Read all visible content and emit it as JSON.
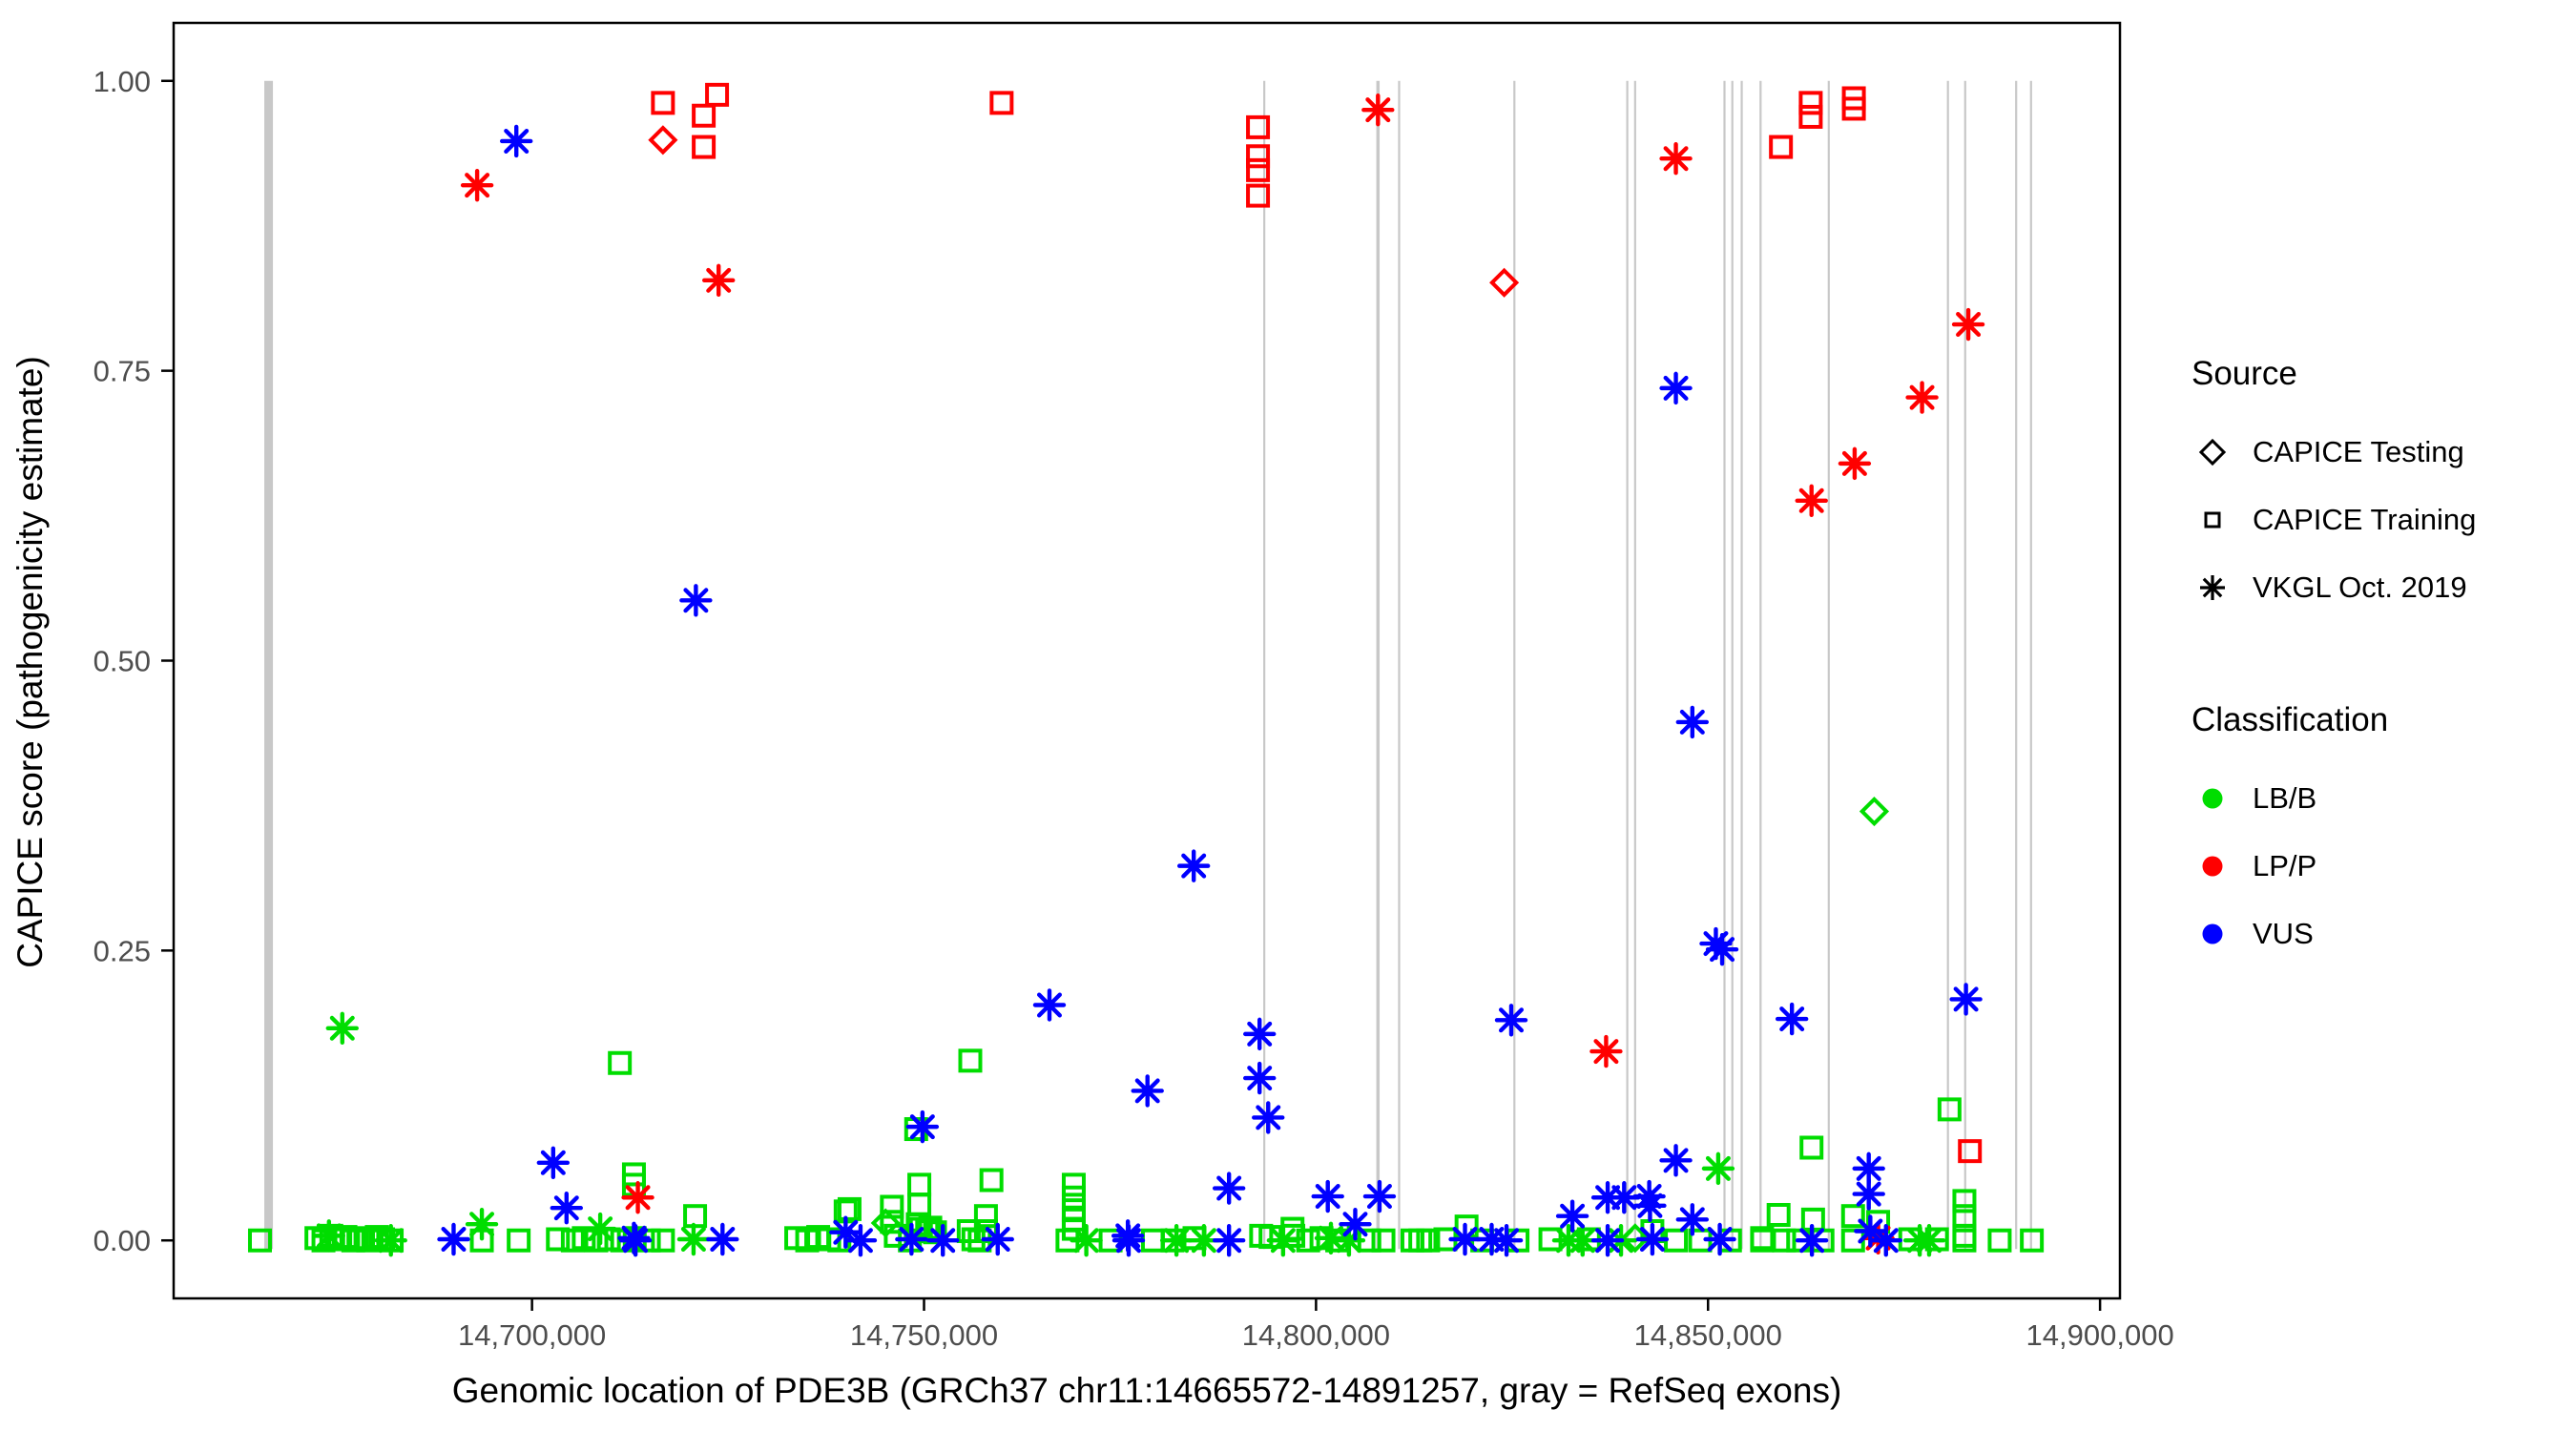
{
  "colors": {
    "lbb": "#00DD00",
    "lpp": "#FF0000",
    "vus": "#0000FF",
    "exon": "#C8C8C8",
    "tick_label": "#4D4D4D",
    "panel_border": "#000000"
  },
  "legend": {
    "source": {
      "title": "Source",
      "items": [
        {
          "label": "CAPICE Testing",
          "shape": "diamond"
        },
        {
          "label": "CAPICE Training",
          "shape": "square"
        },
        {
          "label": "VKGL Oct. 2019",
          "shape": "asterisk"
        }
      ]
    },
    "classification": {
      "title": "Classification",
      "items": [
        {
          "label": "LB/B",
          "color_key": "lbb"
        },
        {
          "label": "LP/P",
          "color_key": "lpp"
        },
        {
          "label": "VUS",
          "color_key": "vus"
        }
      ]
    }
  },
  "chart_data": {
    "type": "scatter",
    "xlabel": "Genomic location of PDE3B (GRCh37 chr11:14665572-14891257, gray = RefSeq exons)",
    "ylabel": "CAPICE score (pathogenicity estimate)",
    "x_domain": [
      14654288,
      14902541
    ],
    "y_domain": [
      -0.05,
      1.05
    ],
    "x_ticks": [
      {
        "v": 14700000,
        "label": "14,700,000"
      },
      {
        "v": 14750000,
        "label": "14,750,000"
      },
      {
        "v": 14800000,
        "label": "14,800,000"
      },
      {
        "v": 14850000,
        "label": "14,850,000"
      },
      {
        "v": 14900000,
        "label": "14,900,000"
      }
    ],
    "y_ticks": [
      {
        "v": 0,
        "label": "0.00"
      },
      {
        "v": 0.25,
        "label": "0.25"
      },
      {
        "v": 0.5,
        "label": "0.50"
      },
      {
        "v": 0.75,
        "label": "0.75"
      },
      {
        "v": 1,
        "label": "1.00"
      }
    ],
    "grid": "off",
    "legend_position": "right",
    "exons_note": "gray vertical bands = RefSeq exons, drawn from score 0 to 1; [center_bp, width_bp]",
    "exons": [
      [
        14666400,
        1100
      ],
      [
        14793400,
        250
      ],
      [
        14807900,
        420
      ],
      [
        14810600,
        250
      ],
      [
        14825300,
        250
      ],
      [
        14839700,
        250
      ],
      [
        14840700,
        250
      ],
      [
        14852100,
        250
      ],
      [
        14853100,
        250
      ],
      [
        14854300,
        250
      ],
      [
        14856700,
        250
      ],
      [
        14865400,
        250
      ],
      [
        14880600,
        250
      ],
      [
        14882800,
        250
      ],
      [
        14889300,
        250
      ],
      [
        14891200,
        250
      ]
    ],
    "series": [
      {
        "classification": "LB/B",
        "source": "CAPICE Training",
        "shape": "square",
        "color_key": "lbb",
        "points": [
          [
            14711200,
            0.153
          ],
          [
            14755900,
            0.155
          ],
          [
            14880800,
            0.113
          ],
          [
            14749000,
            0.096
          ],
          [
            14863200,
            0.08
          ],
          [
            14713000,
            0.057
          ],
          [
            14758600,
            0.052
          ],
          [
            14713000,
            0.048
          ],
          [
            14749400,
            0.048
          ],
          [
            14769100,
            0.048
          ],
          [
            14769100,
            0.037
          ],
          [
            14882700,
            0.034
          ],
          [
            14749400,
            0.031
          ],
          [
            14745900,
            0.029
          ],
          [
            14740500,
            0.027
          ],
          [
            14769100,
            0.026
          ],
          [
            14740000,
            0.025
          ],
          [
            14859000,
            0.022
          ],
          [
            14720800,
            0.021
          ],
          [
            14757900,
            0.021
          ],
          [
            14868500,
            0.021
          ],
          [
            14882700,
            0.021
          ],
          [
            14769100,
            0.018
          ],
          [
            14863400,
            0.018
          ],
          [
            14745900,
            0.016
          ],
          [
            14871700,
            0.016
          ],
          [
            14749200,
            0.014
          ],
          [
            14819200,
            0.012
          ],
          [
            14750800,
            0.011
          ],
          [
            14769100,
            0.01
          ],
          [
            14797000,
            0.01
          ],
          [
            14749600,
            0.01
          ],
          [
            14750400,
            0.008
          ],
          [
            14755700,
            0.008
          ],
          [
            14757900,
            0.008
          ],
          [
            14842900,
            0.008
          ],
          [
            14751400,
            0.007
          ],
          [
            14665300,
            0.0
          ],
          [
            14672500,
            0.002
          ],
          [
            14673400,
            0.0
          ],
          [
            14674400,
            0.004
          ],
          [
            14675300,
            0.001
          ],
          [
            14676200,
            0.003
          ],
          [
            14677200,
            0.0
          ],
          [
            14678100,
            0.002
          ],
          [
            14679100,
            0.0
          ],
          [
            14680200,
            0.003
          ],
          [
            14681000,
            0.001
          ],
          [
            14682100,
            0.0
          ],
          [
            14693600,
            0.0
          ],
          [
            14698300,
            0.0
          ],
          [
            14703300,
            0.001
          ],
          [
            14705200,
            0.0
          ],
          [
            14706600,
            0.002
          ],
          [
            14708200,
            0.0
          ],
          [
            14709800,
            0.001
          ],
          [
            14711500,
            0.0
          ],
          [
            14713100,
            0.002
          ],
          [
            14714900,
            0.0
          ],
          [
            14716700,
            0.0
          ],
          [
            14733700,
            0.002
          ],
          [
            14735100,
            0.0
          ],
          [
            14736500,
            0.003
          ],
          [
            14737900,
            0.001
          ],
          [
            14739200,
            0.0
          ],
          [
            14746400,
            0.004
          ],
          [
            14748200,
            0.0
          ],
          [
            14756300,
            0.001
          ],
          [
            14757100,
            0.0
          ],
          [
            14768300,
            0.0
          ],
          [
            14773800,
            0.0
          ],
          [
            14779200,
            0.0
          ],
          [
            14781700,
            0.0
          ],
          [
            14784500,
            0.002
          ],
          [
            14793000,
            0.004
          ],
          [
            14794200,
            0.003
          ],
          [
            14797100,
            0.004
          ],
          [
            14799000,
            0.0
          ],
          [
            14800700,
            0.002
          ],
          [
            14802700,
            0.0
          ],
          [
            14806800,
            0.0
          ],
          [
            14808600,
            0.0
          ],
          [
            14812300,
            0.0
          ],
          [
            14813300,
            0.0
          ],
          [
            14814300,
            0.0
          ],
          [
            14816500,
            0.001
          ],
          [
            14821200,
            0.0
          ],
          [
            14825700,
            0.0
          ],
          [
            14829900,
            0.001
          ],
          [
            14834800,
            0.001
          ],
          [
            14845900,
            0.0
          ],
          [
            14849000,
            0.0
          ],
          [
            14852800,
            0.0
          ],
          [
            14856900,
            0.002
          ],
          [
            14856900,
            0.0
          ],
          [
            14859700,
            0.0
          ],
          [
            14861500,
            0.0
          ],
          [
            14864600,
            0.0
          ],
          [
            14868500,
            0.0
          ],
          [
            14875800,
            0.001
          ],
          [
            14879200,
            0.001
          ],
          [
            14882700,
            0.004
          ],
          [
            14882700,
            0.0
          ],
          [
            14887200,
            0.0
          ],
          [
            14891300,
            0.0
          ]
        ]
      },
      {
        "classification": "LB/B",
        "source": "CAPICE Testing",
        "shape": "diamond",
        "color_key": "lbb",
        "points": [
          [
            14871200,
            0.37
          ],
          [
            14745100,
            0.015
          ],
          [
            14840700,
            0.002
          ]
        ]
      },
      {
        "classification": "LB/B",
        "source": "VKGL Oct. 2019",
        "shape": "asterisk",
        "color_key": "lbb",
        "points": [
          [
            14675800,
            0.183
          ],
          [
            14851300,
            0.062
          ],
          [
            14693600,
            0.014
          ],
          [
            14708700,
            0.01
          ],
          [
            14674100,
            0.004
          ],
          [
            14682000,
            0.0
          ],
          [
            14720600,
            0.001
          ],
          [
            14770700,
            0.0
          ],
          [
            14782200,
            0.0
          ],
          [
            14785700,
            0.0
          ],
          [
            14795800,
            0.0
          ],
          [
            14801900,
            0.002
          ],
          [
            14804200,
            0.0
          ],
          [
            14832200,
            0.0
          ],
          [
            14834000,
            0.0
          ],
          [
            14838900,
            0.0
          ],
          [
            14877000,
            0.0
          ],
          [
            14878200,
            0.0
          ]
        ]
      },
      {
        "classification": "LP/P",
        "source": "CAPICE Training",
        "shape": "square",
        "color_key": "lpp",
        "points": [
          [
            14716700,
            0.981
          ],
          [
            14721900,
            0.97
          ],
          [
            14721900,
            0.943
          ],
          [
            14723600,
            0.988
          ],
          [
            14759900,
            0.981
          ],
          [
            14792600,
            0.96
          ],
          [
            14792600,
            0.935
          ],
          [
            14792600,
            0.923
          ],
          [
            14792600,
            0.901
          ],
          [
            14859300,
            0.943
          ],
          [
            14863100,
            0.981
          ],
          [
            14863100,
            0.969
          ],
          [
            14868600,
            0.985
          ],
          [
            14868600,
            0.976
          ],
          [
            14883400,
            0.077
          ]
        ]
      },
      {
        "classification": "LP/P",
        "source": "CAPICE Testing",
        "shape": "diamond",
        "color_key": "lpp",
        "points": [
          [
            14716700,
            0.949
          ],
          [
            14824000,
            0.826
          ]
        ]
      },
      {
        "classification": "LP/P",
        "source": "VKGL Oct. 2019",
        "shape": "asterisk",
        "color_key": "lpp",
        "points": [
          [
            14693000,
            0.91
          ],
          [
            14723800,
            0.828
          ],
          [
            14807900,
            0.975
          ],
          [
            14845900,
            0.933
          ],
          [
            14883200,
            0.79
          ],
          [
            14877300,
            0.727
          ],
          [
            14868700,
            0.67
          ],
          [
            14863200,
            0.638
          ],
          [
            14837000,
            0.163
          ],
          [
            14713500,
            0.037
          ],
          [
            14871700,
            0.002
          ]
        ]
      },
      {
        "classification": "VUS",
        "source": "VKGL Oct. 2019",
        "shape": "asterisk",
        "color_key": "vus",
        "points": [
          [
            14698000,
            0.948
          ],
          [
            14720900,
            0.552
          ],
          [
            14845900,
            0.735
          ],
          [
            14848000,
            0.447
          ],
          [
            14784400,
            0.323
          ],
          [
            14851000,
            0.256
          ],
          [
            14851800,
            0.251
          ],
          [
            14882900,
            0.208
          ],
          [
            14766000,
            0.203
          ],
          [
            14860700,
            0.191
          ],
          [
            14824900,
            0.19
          ],
          [
            14792800,
            0.178
          ],
          [
            14792800,
            0.14
          ],
          [
            14778500,
            0.129
          ],
          [
            14793900,
            0.106
          ],
          [
            14749800,
            0.098
          ],
          [
            14845900,
            0.069
          ],
          [
            14702700,
            0.067
          ],
          [
            14870500,
            0.062
          ],
          [
            14788900,
            0.045
          ],
          [
            14870500,
            0.04
          ],
          [
            14842500,
            0.038
          ],
          [
            14808100,
            0.038
          ],
          [
            14801500,
            0.038
          ],
          [
            14837200,
            0.037
          ],
          [
            14839300,
            0.037
          ],
          [
            14842600,
            0.03
          ],
          [
            14704400,
            0.028
          ],
          [
            14832700,
            0.021
          ],
          [
            14848000,
            0.018
          ],
          [
            14805000,
            0.014
          ],
          [
            14740000,
            0.007
          ],
          [
            14690000,
            0.001
          ],
          [
            14713000,
            0.002
          ],
          [
            14713200,
            0.0
          ],
          [
            14724300,
            0.001
          ],
          [
            14741900,
            0.0
          ],
          [
            14748400,
            0.001
          ],
          [
            14752400,
            0.0
          ],
          [
            14759400,
            0.001
          ],
          [
            14776000,
            0.004
          ],
          [
            14776100,
            0.0
          ],
          [
            14788900,
            0.0
          ],
          [
            14819000,
            0.001
          ],
          [
            14822400,
            0.001
          ],
          [
            14824300,
            0.0
          ],
          [
            14837200,
            0.0
          ],
          [
            14842900,
            0.001
          ],
          [
            14851500,
            0.001
          ],
          [
            14863250,
            0.0
          ],
          [
            14870700,
            0.008
          ],
          [
            14872700,
            0.0
          ]
        ]
      }
    ]
  }
}
